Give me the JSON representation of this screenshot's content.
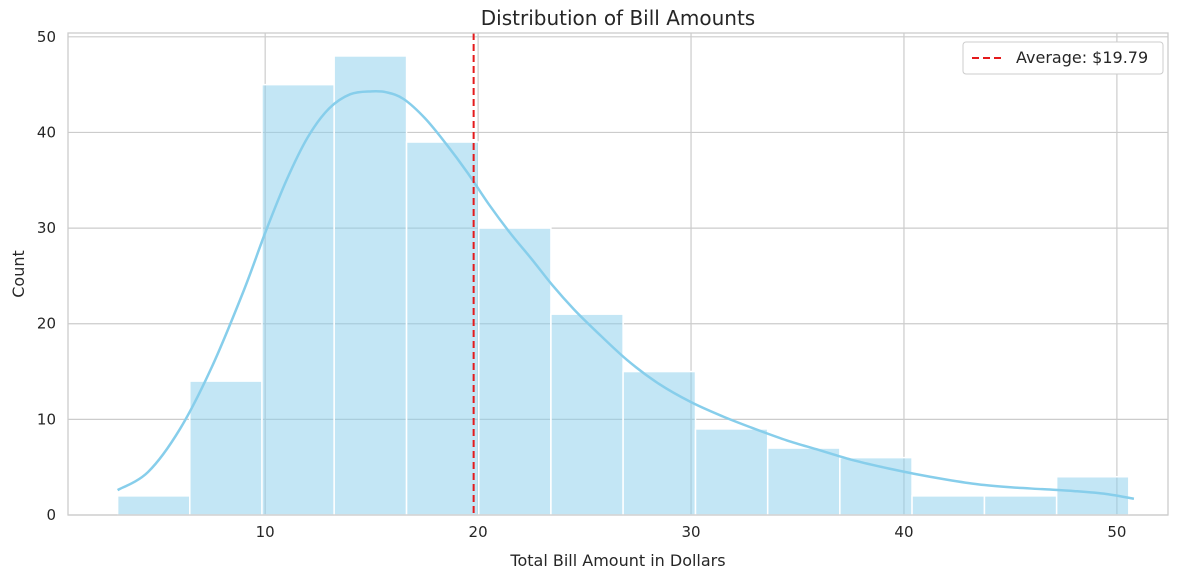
{
  "chart_data": {
    "type": "bar",
    "title": "Distribution of Bill Amounts",
    "xlabel": "Total Bill Amount in Dollars",
    "ylabel": "Count",
    "xlim": [
      0.74,
      52.4
    ],
    "ylim": [
      0,
      50.4
    ],
    "xticks": [
      10,
      20,
      30,
      40,
      50
    ],
    "yticks": [
      0,
      10,
      20,
      30,
      40,
      50
    ],
    "grid": true,
    "legend_position": "top-right",
    "bins": [
      {
        "x0": 3.07,
        "x1": 6.46,
        "count": 2
      },
      {
        "x0": 6.46,
        "x1": 9.85,
        "count": 14
      },
      {
        "x0": 9.85,
        "x1": 13.24,
        "count": 45
      },
      {
        "x0": 13.24,
        "x1": 16.64,
        "count": 48
      },
      {
        "x0": 16.64,
        "x1": 20.03,
        "count": 39
      },
      {
        "x0": 20.03,
        "x1": 23.42,
        "count": 30
      },
      {
        "x0": 23.42,
        "x1": 26.81,
        "count": 21
      },
      {
        "x0": 26.81,
        "x1": 30.21,
        "count": 15
      },
      {
        "x0": 30.21,
        "x1": 33.6,
        "count": 9
      },
      {
        "x0": 33.6,
        "x1": 36.99,
        "count": 7
      },
      {
        "x0": 36.99,
        "x1": 40.38,
        "count": 6
      },
      {
        "x0": 40.38,
        "x1": 43.78,
        "count": 2
      },
      {
        "x0": 43.78,
        "x1": 47.17,
        "count": 2
      },
      {
        "x0": 47.17,
        "x1": 50.56,
        "count": 4
      }
    ],
    "kde": {
      "x": [
        3.07,
        4.5,
        6,
        7.5,
        9,
        10,
        11,
        12,
        13,
        14,
        15,
        15.7,
        16.5,
        17.5,
        18.5,
        19.5,
        20.5,
        21.5,
        22.5,
        23.5,
        24.5,
        25.5,
        27,
        28.5,
        30,
        31.5,
        33,
        34.5,
        36,
        37.5,
        39,
        40.5,
        42,
        43.5,
        45,
        46.5,
        48,
        49.5,
        50.8
      ],
      "y": [
        2.6,
        4.5,
        9.0,
        15.5,
        23.5,
        29.5,
        35.0,
        39.5,
        42.5,
        44.0,
        44.3,
        44.2,
        43.5,
        41.5,
        38.8,
        35.8,
        32.5,
        29.5,
        26.8,
        24.0,
        21.5,
        19.3,
        16.2,
        13.7,
        11.8,
        10.3,
        9.0,
        7.8,
        6.8,
        5.8,
        5.0,
        4.3,
        3.7,
        3.2,
        2.9,
        2.7,
        2.5,
        2.2,
        1.7
      ]
    },
    "average_line": {
      "x": 19.79,
      "label": "Average: $19.79",
      "color": "#e41a1c"
    },
    "colors": {
      "bar_fill": "#87ceeb",
      "bar_opacity": 0.5,
      "kde_line": "#87ceeb",
      "grid": "#cccccc",
      "axes_frame": "#cccccc"
    }
  }
}
